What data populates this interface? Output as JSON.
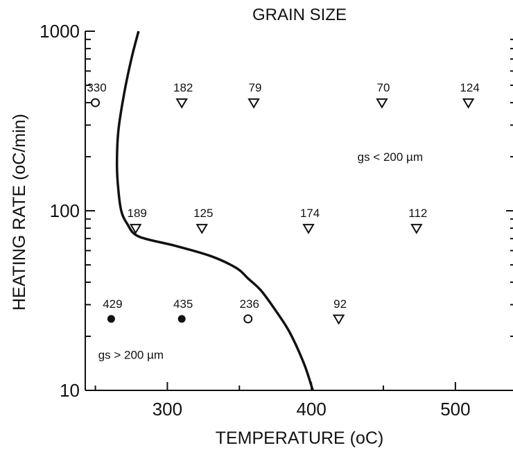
{
  "chart_data": {
    "type": "scatter",
    "title": "GRAIN SIZE",
    "xlabel": "TEMPERATURE (oC)",
    "ylabel": "HEATING RATE (oC/min)",
    "xlim": [
      243,
      540
    ],
    "ylim": [
      10,
      1000
    ],
    "yscale": "log",
    "grid": false,
    "x_ticks": [
      {
        "value": 300,
        "label": "300"
      },
      {
        "value": 400,
        "label": "400"
      },
      {
        "value": 500,
        "label": "500"
      }
    ],
    "y_ticks": [
      {
        "value": 10,
        "label": "10"
      },
      {
        "value": 100,
        "label": "100"
      },
      {
        "value": 1000,
        "label": "1000"
      }
    ],
    "marker_legend": {
      "open-circle": "open circle",
      "filled-circle": "filled circle",
      "open-triangle": "open inverted triangle"
    },
    "points": [
      {
        "x": 250,
        "y": 400,
        "label": "330",
        "marker": "open-circle"
      },
      {
        "x": 310,
        "y": 400,
        "label": "182",
        "marker": "open-triangle"
      },
      {
        "x": 360,
        "y": 400,
        "label": "79",
        "marker": "open-triangle"
      },
      {
        "x": 449,
        "y": 400,
        "label": "70",
        "marker": "open-triangle"
      },
      {
        "x": 509,
        "y": 400,
        "label": "124",
        "marker": "open-triangle"
      },
      {
        "x": 278,
        "y": 80,
        "label": "189",
        "marker": "open-triangle"
      },
      {
        "x": 324,
        "y": 80,
        "label": "125",
        "marker": "open-triangle"
      },
      {
        "x": 398,
        "y": 80,
        "label": "174",
        "marker": "open-triangle"
      },
      {
        "x": 473,
        "y": 80,
        "label": "112",
        "marker": "open-triangle"
      },
      {
        "x": 261,
        "y": 25,
        "label": "429",
        "marker": "filled-circle"
      },
      {
        "x": 310,
        "y": 25,
        "label": "435",
        "marker": "filled-circle"
      },
      {
        "x": 356,
        "y": 25,
        "label": "236",
        "marker": "open-circle"
      },
      {
        "x": 419,
        "y": 25,
        "label": "92",
        "marker": "open-triangle"
      }
    ],
    "boundary_curve": {
      "x": [
        280,
        275,
        270,
        266,
        265,
        266,
        268,
        272,
        280,
        305,
        330,
        348,
        356,
        365,
        375,
        385,
        395,
        401
      ],
      "y": [
        1000,
        700,
        450,
        280,
        180,
        130,
        100,
        85,
        72,
        64,
        56,
        48,
        42,
        36,
        28,
        21,
        14,
        10
      ]
    },
    "annotations": [
      {
        "text": "gs < 200 µm",
        "x": 432,
        "y": 190
      },
      {
        "text": "gs > 200 µm",
        "x": 252,
        "y": 15
      }
    ]
  }
}
